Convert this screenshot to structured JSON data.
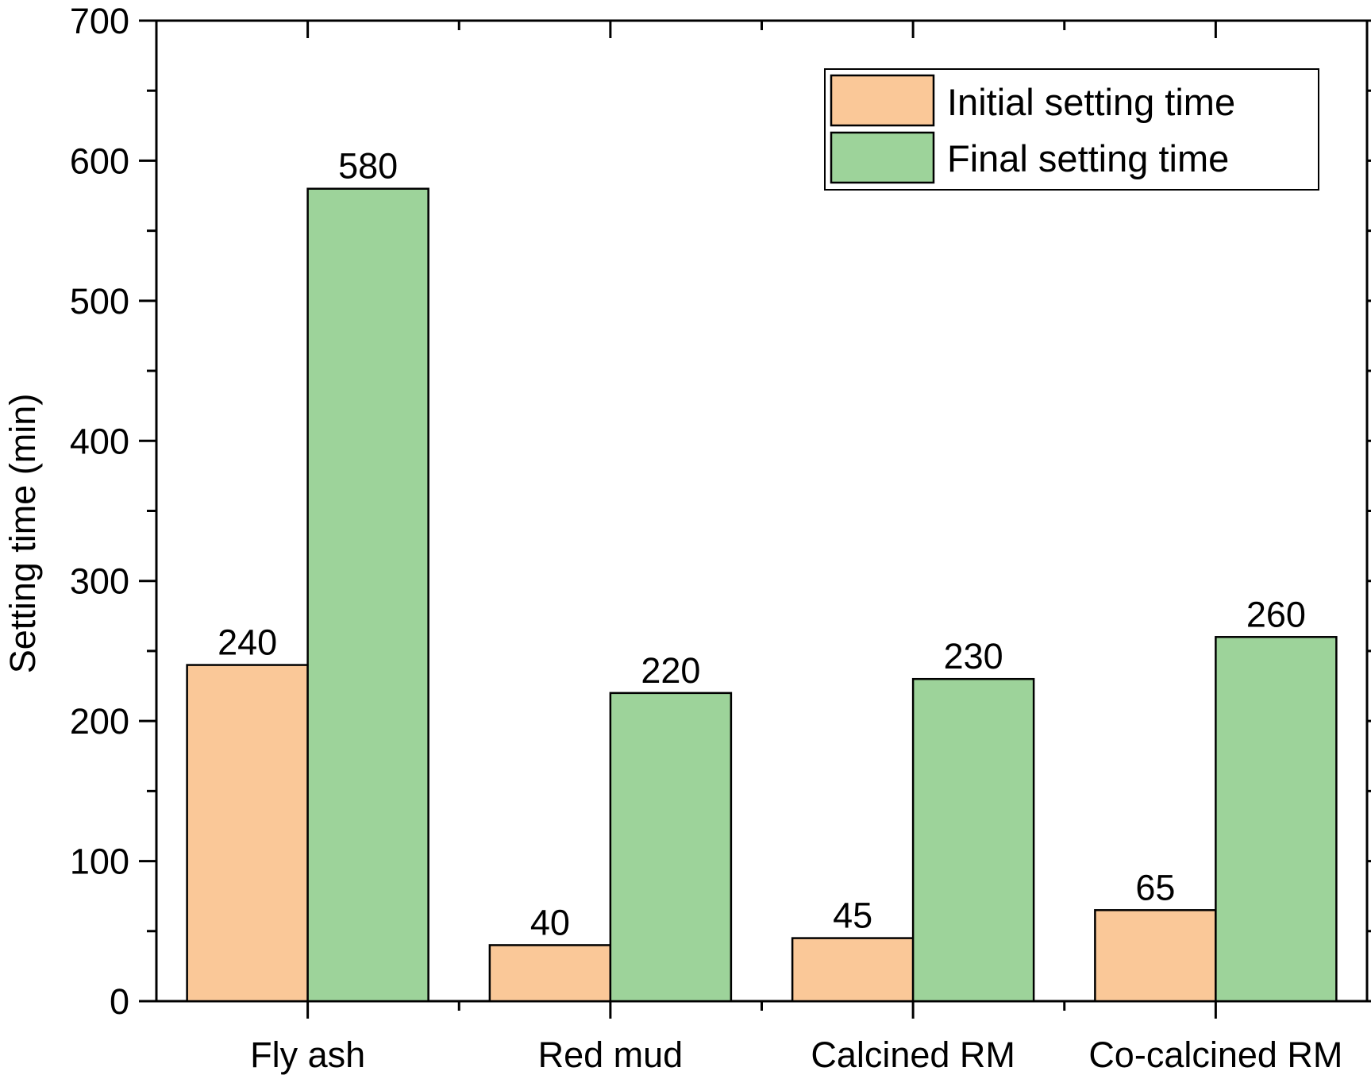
{
  "chart_data": {
    "type": "bar",
    "title": "",
    "xlabel": "",
    "ylabel": "Setting time (min)",
    "ylim": [
      0,
      700
    ],
    "yticks": [
      0,
      100,
      200,
      300,
      400,
      500,
      600,
      700
    ],
    "categories": [
      "Fly ash",
      "Red mud",
      "Calcined RM",
      "Co-calcined RM"
    ],
    "series": [
      {
        "name": "Initial setting time",
        "color": "#fac898",
        "values": [
          240,
          40,
          45,
          65
        ]
      },
      {
        "name": "Final setting time",
        "color": "#9dd39a",
        "values": [
          580,
          220,
          230,
          260
        ]
      }
    ],
    "data_labels": true,
    "legend_position": "top-right",
    "grid": false
  }
}
